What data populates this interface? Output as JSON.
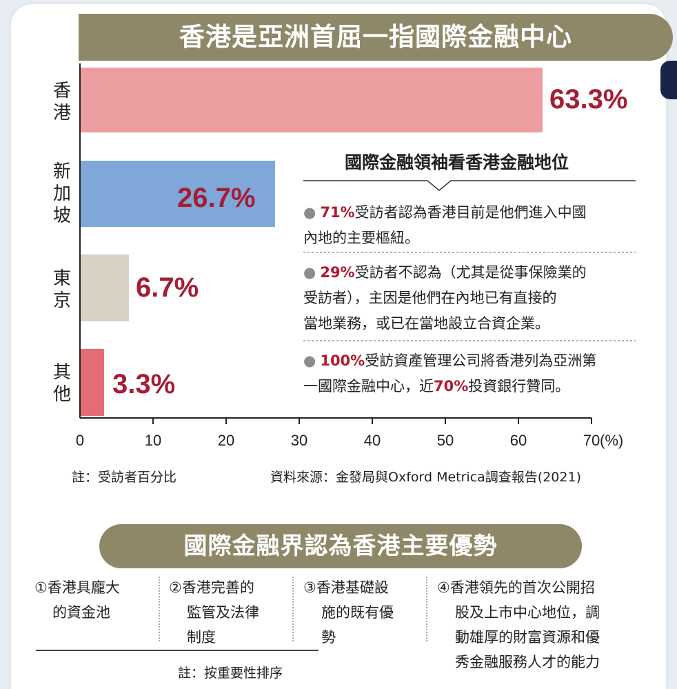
{
  "title": "香港是亞洲首屈一指國際金融中心",
  "chart_data": {
    "type": "bar",
    "orientation": "horizontal",
    "categories": [
      "香港",
      "新加坡",
      "東京",
      "其他"
    ],
    "values": [
      63.3,
      26.7,
      6.7,
      3.3
    ],
    "value_labels": [
      "63.3%",
      "26.7%",
      "6.7%",
      "3.3%"
    ],
    "colors": [
      "#ec9da0",
      "#7fa8d9",
      "#d8d2c4",
      "#e46c74"
    ],
    "label_color": "#a51d34",
    "xlim": [
      0,
      70
    ],
    "xticks": [
      0,
      10,
      20,
      30,
      40,
      50,
      60,
      70
    ],
    "x_unit": "(%)",
    "grid": false
  },
  "callout": {
    "title": "國際金融領袖看香港金融地位",
    "bullets": [
      {
        "hl": "71%",
        "lines": [
          "受訪者認為香港目前是他們進入中國",
          "內地的主要樞紐。"
        ]
      },
      {
        "hl": "29%",
        "lines": [
          "受訪者不認為（尤其是從事保險業的",
          "受訪者），主因是他們在內地已有直接的",
          "當地業務，或已在當地設立合資企業。"
        ]
      },
      {
        "hl": "100%",
        "lines": [
          "受訪資產管理公司將香港列為亞洲第",
          "一國際金融中心，近"
        ],
        "hl2": "70%",
        "tail": "投資銀行贊同。"
      }
    ]
  },
  "chart_note": "註：受訪者百分比",
  "source": "資料來源：金發局與Oxford  Metrica調查報告(2021)",
  "section2_title": "國際金融界認為香港主要優勢",
  "advantages": [
    {
      "lines": [
        "①香港具龐大",
        "的資金池"
      ]
    },
    {
      "lines": [
        "②香港完善的",
        "監管及法律",
        "制度"
      ]
    },
    {
      "lines": [
        "③香港基礎設",
        "施的既有優",
        "勢"
      ]
    },
    {
      "lines": [
        "④香港領先的首次公開招",
        "股及上市中心地位，調",
        "動雄厚的財富資源和優",
        "秀金融服務人才的能力"
      ]
    }
  ],
  "bottom_note": "註：按重要性排序"
}
